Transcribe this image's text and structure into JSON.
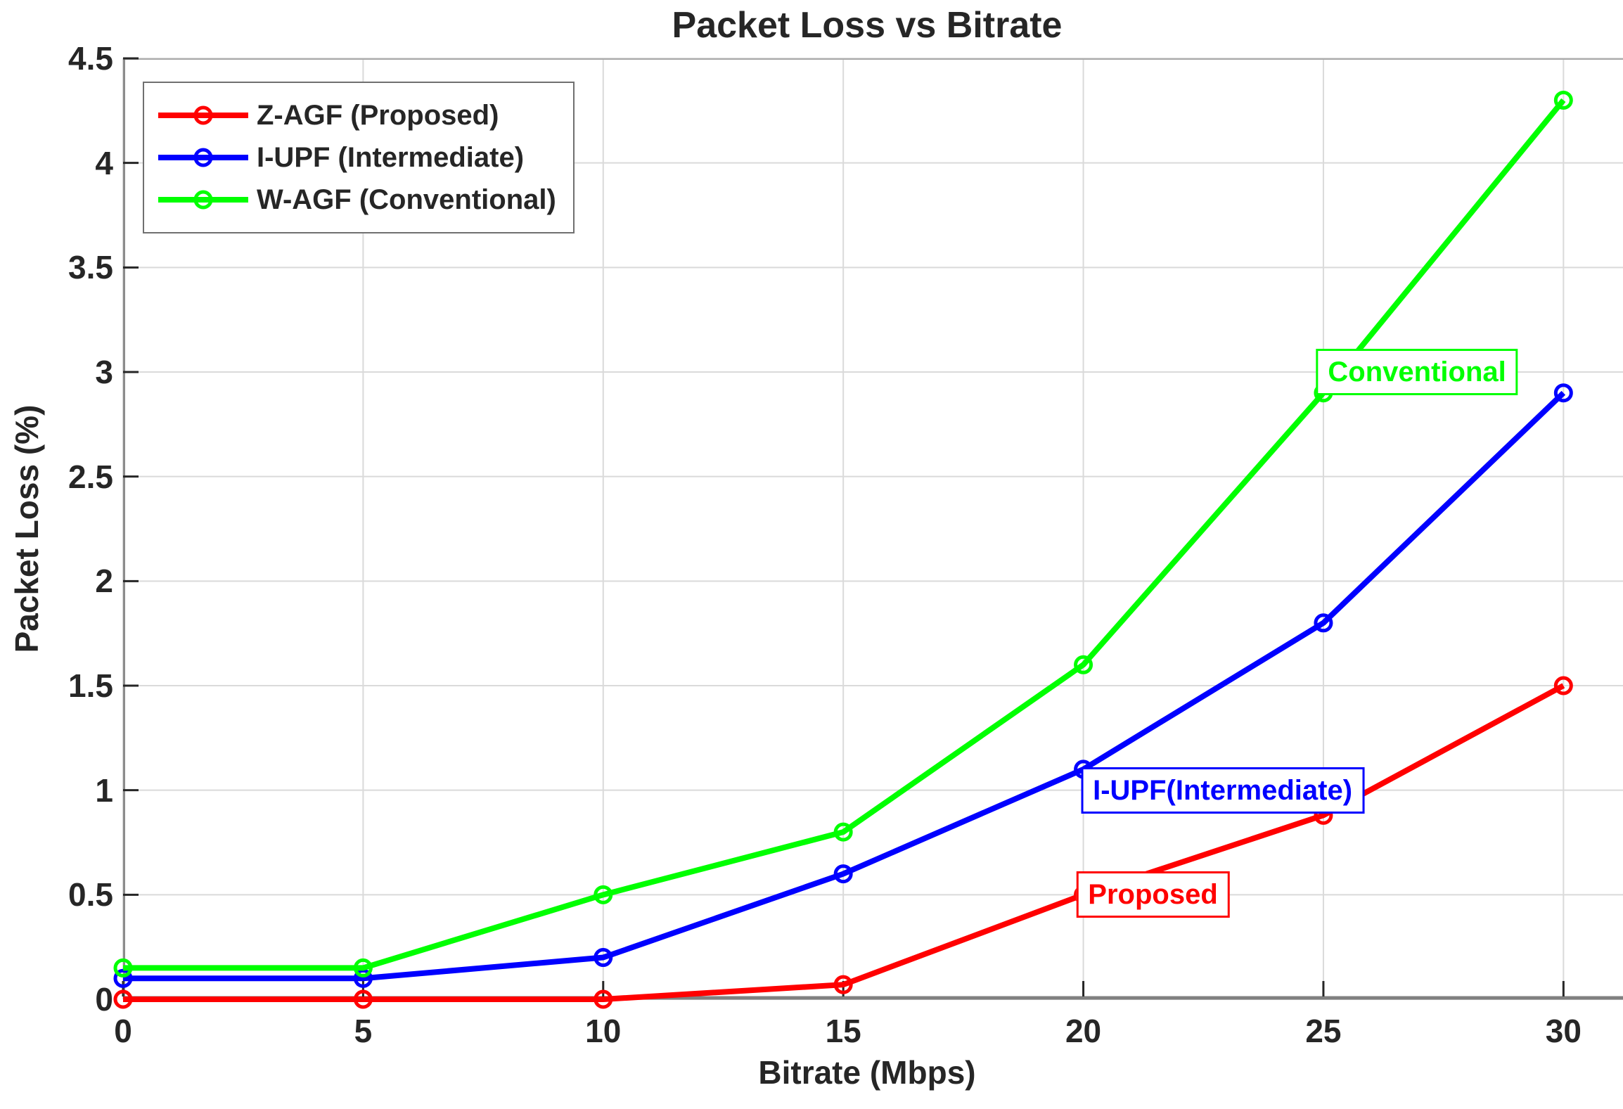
{
  "chart_data": {
    "type": "line",
    "title": "Packet Loss vs Bitrate",
    "xlabel": "Bitrate (Mbps)",
    "ylabel": "Packet Loss (%)",
    "x": [
      0,
      5,
      10,
      15,
      20,
      25,
      30
    ],
    "series": [
      {
        "name": "Z-AGF (Proposed)",
        "color": "#ff0000",
        "values": [
          0,
          0,
          0,
          0.07,
          0.5,
          0.88,
          1.5
        ]
      },
      {
        "name": "I-UPF (Intermediate)",
        "color": "#0000ff",
        "values": [
          0.1,
          0.1,
          0.2,
          0.6,
          1.1,
          1.8,
          2.9
        ]
      },
      {
        "name": "W-AGF (Conventional)",
        "color": "#00ff00",
        "values": [
          0.15,
          0.15,
          0.5,
          0.8,
          1.6,
          2.9,
          4.3
        ]
      }
    ],
    "annotations": [
      {
        "label": "Conventional",
        "color": "#00ff00",
        "x": 26.95,
        "y": 3.0
      },
      {
        "label": "I-UPF(Intermediate)",
        "color": "#0000ff",
        "x": 22.9,
        "y": 1.0
      },
      {
        "label": "Proposed",
        "color": "#ff0000",
        "x": 21.45,
        "y": 0.5
      }
    ],
    "xticks": [
      0,
      5,
      10,
      15,
      20,
      25,
      30
    ],
    "xtick_labels": [
      "0",
      "5",
      "10",
      "15",
      "20",
      "25",
      "30"
    ],
    "yticks": [
      0,
      0.5,
      1,
      1.5,
      2,
      2.5,
      3,
      3.5,
      4,
      4.5
    ],
    "ytick_labels": [
      "0",
      "0.5",
      "1",
      "1.5",
      "2",
      "2.5",
      "3",
      "3.5",
      "4",
      "4.5"
    ],
    "xlim": [
      0,
      31.24
    ],
    "ylim": [
      0,
      4.5
    ],
    "grid": true,
    "legend_position": "top-left",
    "colors": {
      "grid": "#dadada",
      "axis": "#808080",
      "tick": "#262626",
      "text": "#262626",
      "legend_border": "#707070"
    }
  }
}
